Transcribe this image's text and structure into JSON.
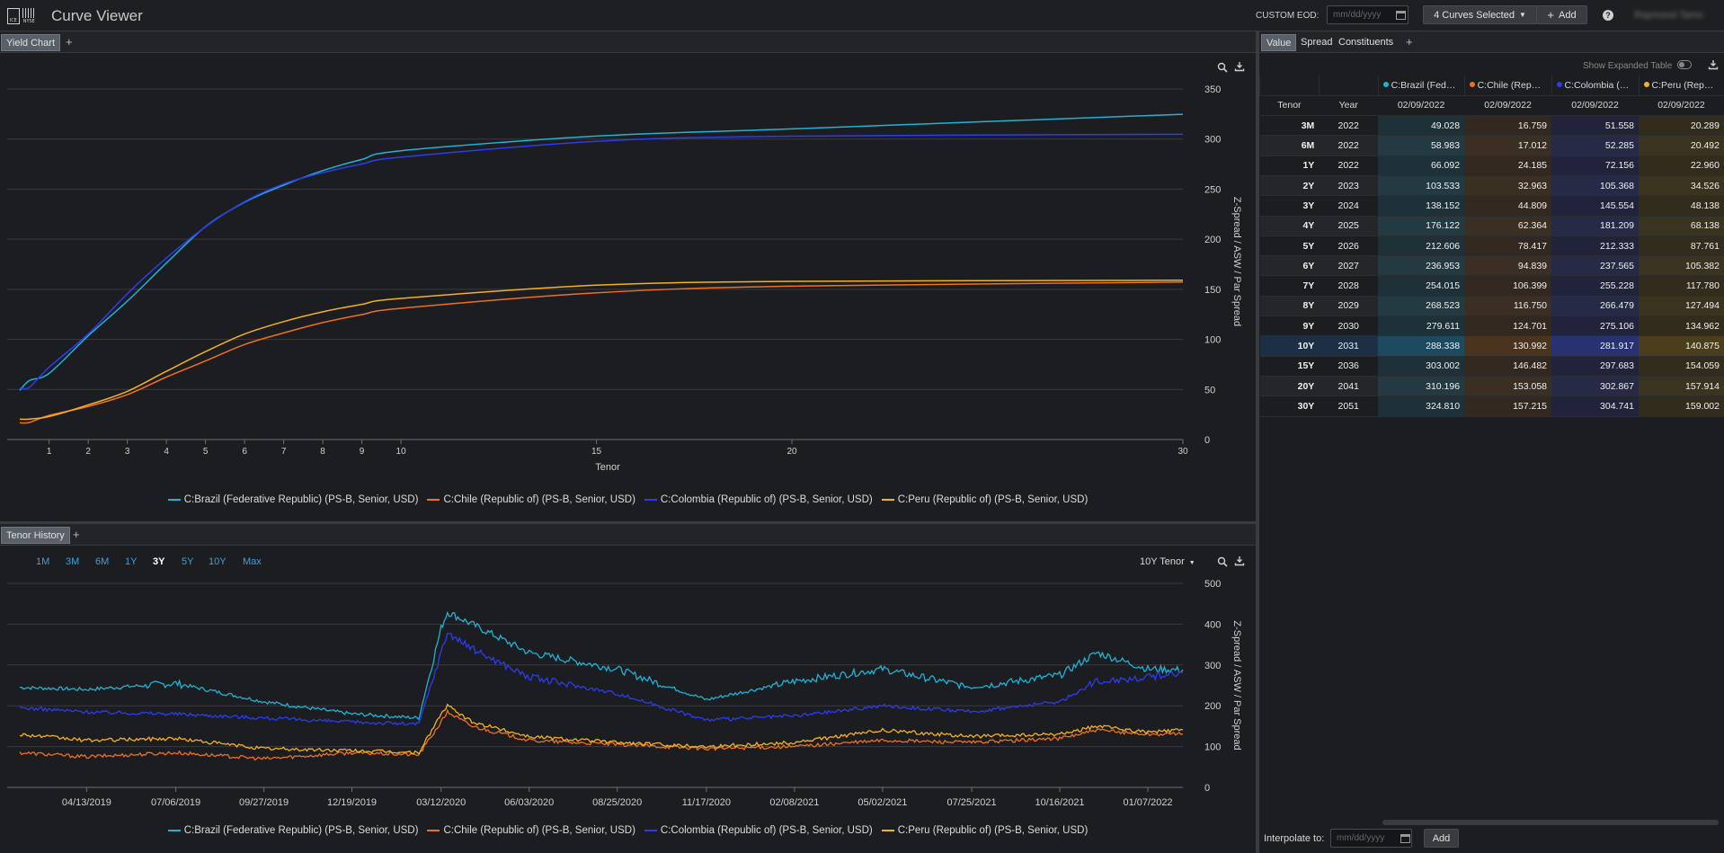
{
  "app": {
    "title": "Curve Viewer",
    "logo_ice": "ICE",
    "logo_nyse": "NYSE",
    "custom_eod_label": "CUSTOM EOD:",
    "date_placeholder": "mm/dd/yyyy",
    "curves_selected_label": "4 Curves Selected",
    "add_label": "Add",
    "user_name": "Raymond Tamo"
  },
  "colors": {
    "brazil": "#1fb3d6",
    "chile": "#f0701e",
    "colombia": "#2c3cf0",
    "peru": "#f5b21e",
    "accent_link": "#3aa0e6",
    "background": "#1c1d20"
  },
  "yield_chart": {
    "tab_label": "Yield Chart",
    "add_tab": "+",
    "icons": [
      "zoom-icon",
      "download-icon"
    ]
  },
  "tenor_history": {
    "tab_label": "Tenor History",
    "add_tab": "+",
    "ranges": [
      "1M",
      "3M",
      "6M",
      "1Y",
      "3Y",
      "5Y",
      "10Y",
      "Max"
    ],
    "active_range": "3Y",
    "tenor_dropdown": "10Y Tenor"
  },
  "legend": [
    "C:Brazil (Federative Republic) (PS-B, Senior, USD)",
    "C:Chile (Republic of) (PS-B, Senior, USD)",
    "C:Colombia (Republic of) (PS-B, Senior, USD)",
    "C:Peru (Republic of) (PS-B, Senior, USD)"
  ],
  "chart_data": [
    {
      "type": "line",
      "xlabel": "Tenor",
      "ylabel": "Z-Spread / ASW / Par Spread",
      "x_ticks": [
        1,
        2,
        3,
        4,
        5,
        6,
        7,
        8,
        9,
        10,
        15,
        20,
        30
      ],
      "y_ticks": [
        0,
        50,
        100,
        150,
        200,
        250,
        300,
        350
      ],
      "xlim": [
        0.25,
        30
      ],
      "ylim": [
        0,
        350
      ],
      "grid": true,
      "legend_placement": "bottom",
      "x": [
        0.25,
        0.5,
        1,
        2,
        3,
        4,
        5,
        6,
        7,
        8,
        9,
        10,
        15,
        20,
        30
      ],
      "series": [
        {
          "name": "C:Brazil (Federative Republic) (PS-B, Senior, USD)",
          "values": [
            49.028,
            58.983,
            66.092,
            103.533,
            138.152,
            176.122,
            212.606,
            236.953,
            254.015,
            268.523,
            279.611,
            288.338,
            303.002,
            310.196,
            324.81
          ]
        },
        {
          "name": "C:Chile (Republic of) (PS-B, Senior, USD)",
          "values": [
            16.759,
            17.012,
            24.185,
            32.963,
            44.809,
            62.364,
            78.417,
            94.839,
            106.399,
            116.75,
            124.701,
            130.992,
            146.482,
            153.058,
            157.215
          ]
        },
        {
          "name": "C:Colombia (Republic of) (PS-B, Senior, USD)",
          "values": [
            51.558,
            52.285,
            72.156,
            105.368,
            145.554,
            181.209,
            212.333,
            237.565,
            255.228,
            266.479,
            275.106,
            281.917,
            297.683,
            302.867,
            304.741
          ]
        },
        {
          "name": "C:Peru (Republic of) (PS-B, Senior, USD)",
          "values": [
            20.289,
            20.492,
            22.96,
            34.526,
            48.138,
            68.138,
            87.761,
            105.382,
            117.78,
            127.494,
            134.962,
            140.875,
            154.059,
            157.914,
            159.002
          ]
        }
      ]
    },
    {
      "type": "line",
      "xlabel": "",
      "ylabel": "Z-Spread / ASW / Par Spread",
      "x_ticks": [
        "04/13/2019",
        "07/06/2019",
        "09/27/2019",
        "12/19/2019",
        "03/12/2020",
        "06/03/2020",
        "08/25/2020",
        "11/17/2020",
        "02/08/2021",
        "05/02/2021",
        "07/25/2021",
        "10/16/2021",
        "01/07/2022"
      ],
      "y_ticks": [
        0,
        100,
        200,
        300,
        400,
        500
      ],
      "xlim": [
        "02/09/2019",
        "02/09/2022"
      ],
      "ylim": [
        0,
        500
      ],
      "grid": true,
      "legend_placement": "bottom",
      "x": [
        "02/09/2019",
        "04/13/2019",
        "07/06/2019",
        "09/27/2019",
        "12/19/2019",
        "02/20/2020",
        "03/12/2020",
        "03/18/2020",
        "04/10/2020",
        "06/03/2020",
        "08/25/2020",
        "11/17/2020",
        "02/08/2021",
        "05/02/2021",
        "07/25/2021",
        "10/16/2021",
        "11/20/2021",
        "01/07/2022",
        "02/09/2022"
      ],
      "series": [
        {
          "name": "C:Brazil (Federative Republic) (PS-B, Senior, USD)",
          "values": [
            245,
            240,
            255,
            210,
            180,
            170,
            390,
            430,
            400,
            330,
            290,
            215,
            260,
            290,
            245,
            275,
            330,
            290,
            288
          ]
        },
        {
          "name": "C:Chile (Republic of) (PS-B, Senior, USD)",
          "values": [
            85,
            75,
            85,
            70,
            85,
            80,
            160,
            185,
            150,
            115,
            105,
            95,
            100,
            115,
            110,
            120,
            140,
            130,
            131
          ]
        },
        {
          "name": "C:Colombia (Republic of) (PS-B, Senior, USD)",
          "values": [
            195,
            185,
            180,
            170,
            160,
            155,
            330,
            380,
            340,
            270,
            230,
            165,
            175,
            200,
            185,
            210,
            260,
            270,
            282
          ]
        },
        {
          "name": "C:Peru (Republic of) (PS-B, Senior, USD)",
          "values": [
            130,
            115,
            120,
            95,
            90,
            85,
            180,
            200,
            160,
            125,
            110,
            100,
            110,
            140,
            125,
            130,
            150,
            135,
            141
          ]
        }
      ]
    },
    {
      "type": "table",
      "tabs": [
        "Value",
        "Spread",
        "Constituents"
      ],
      "add_tab": "+",
      "show_expanded_label": "Show Expanded Table",
      "curve_headers": [
        "C:Brazil (Fed…",
        "C:Chile (Rep…",
        "C:Colombia (…",
        "C:Peru (Rep…"
      ],
      "columns": [
        "Tenor",
        "Year",
        "02/09/2022",
        "02/09/2022",
        "02/09/2022",
        "02/09/2022"
      ],
      "rows": [
        [
          "3M",
          "2022",
          "49.028",
          "16.759",
          "51.558",
          "20.289"
        ],
        [
          "6M",
          "2022",
          "58.983",
          "17.012",
          "52.285",
          "20.492"
        ],
        [
          "1Y",
          "2022",
          "66.092",
          "24.185",
          "72.156",
          "22.960"
        ],
        [
          "2Y",
          "2023",
          "103.533",
          "32.963",
          "105.368",
          "34.526"
        ],
        [
          "3Y",
          "2024",
          "138.152",
          "44.809",
          "145.554",
          "48.138"
        ],
        [
          "4Y",
          "2025",
          "176.122",
          "62.364",
          "181.209",
          "68.138"
        ],
        [
          "5Y",
          "2026",
          "212.606",
          "78.417",
          "212.333",
          "87.761"
        ],
        [
          "6Y",
          "2027",
          "236.953",
          "94.839",
          "237.565",
          "105.382"
        ],
        [
          "7Y",
          "2028",
          "254.015",
          "106.399",
          "255.228",
          "117.780"
        ],
        [
          "8Y",
          "2029",
          "268.523",
          "116.750",
          "266.479",
          "127.494"
        ],
        [
          "9Y",
          "2030",
          "279.611",
          "124.701",
          "275.106",
          "134.962"
        ],
        [
          "10Y",
          "2031",
          "288.338",
          "130.992",
          "281.917",
          "140.875"
        ],
        [
          "15Y",
          "2036",
          "303.002",
          "146.482",
          "297.683",
          "154.059"
        ],
        [
          "20Y",
          "2041",
          "310.196",
          "153.058",
          "302.867",
          "157.914"
        ],
        [
          "30Y",
          "2051",
          "324.810",
          "157.215",
          "304.741",
          "159.002"
        ]
      ],
      "highlighted_row": "10Y",
      "interpolate_label": "Interpolate to:",
      "interpolate_add": "Add"
    }
  ]
}
